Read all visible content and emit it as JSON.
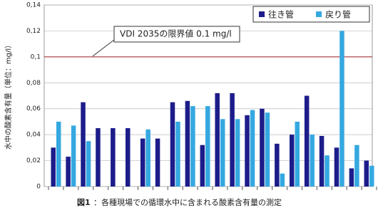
{
  "chart_data": {
    "type": "bar",
    "y_label": "水中の酸素含有量（単位：mg/l）",
    "caption_label": "図1",
    "caption": "：各種現場での循環水中に含まれる酸素含有量の測定",
    "annotation": "VDI 2035の限界値 0.1 mg/l",
    "limit": 0.1,
    "limit_color": "#a01a1a",
    "categories": [
      null,
      null,
      null,
      null,
      null,
      null,
      null,
      null,
      null,
      null,
      null,
      null,
      null,
      null,
      null,
      null,
      null,
      null,
      null,
      null,
      null,
      null
    ],
    "series": [
      {
        "name": "往き管",
        "color": "#1c1c8a",
        "values": [
          0.03,
          0.023,
          0.065,
          0.045,
          0.045,
          0.045,
          0.037,
          0.037,
          0.065,
          0.066,
          0.032,
          0.072,
          0.072,
          0.055,
          0.06,
          0.033,
          0.04,
          0.07,
          0.039,
          0.03,
          0.014,
          0.02
        ]
      },
      {
        "name": "戻り管",
        "color": "#35a8e0",
        "values": [
          0.05,
          0.047,
          0.035,
          null,
          null,
          null,
          0.044,
          null,
          0.05,
          0.062,
          0.062,
          0.052,
          0.052,
          0.059,
          0.057,
          0.01,
          0.05,
          0.04,
          0.024,
          0.12,
          0.032,
          0.016
        ]
      }
    ],
    "ylim": [
      0,
      0.14
    ],
    "yticks": [
      0,
      {
        "value": 0.02,
        "label": "0,02"
      },
      {
        "value": 0.04,
        "label": "0,04"
      },
      {
        "value": 0.06,
        "label": "0,06"
      },
      {
        "value": 0.08,
        "label": "0,08"
      },
      {
        "value": 0.1,
        "label": "0,1"
      },
      {
        "value": 0.12,
        "label": "0,12"
      },
      {
        "value": 0.14,
        "label": "0,14"
      }
    ],
    "grid": true,
    "legend": "top-right"
  }
}
